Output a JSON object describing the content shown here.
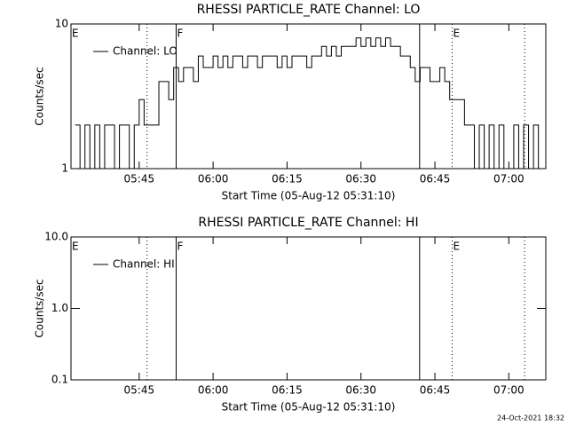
{
  "chart_data": [
    {
      "type": "line",
      "title": "RHESSI PARTICLE_RATE Channel: LO",
      "x_label": "Start Time (05-Aug-12 05:31:10)",
      "y_label": "Counts/sec",
      "log_y": true,
      "ylim": [
        1,
        10
      ],
      "yticks": [
        1,
        10
      ],
      "xlim": [
        331.17,
        427.5
      ],
      "xticks": [
        {
          "value": 345,
          "label": "05:45"
        },
        {
          "value": 360,
          "label": "06:00"
        },
        {
          "value": 375,
          "label": "06:15"
        },
        {
          "value": 390,
          "label": "06:30"
        },
        {
          "value": 405,
          "label": "06:45"
        },
        {
          "value": 420,
          "label": "07:00"
        }
      ],
      "x": [
        332,
        333,
        334,
        335,
        336,
        337,
        338,
        339,
        340,
        341,
        342,
        343,
        344,
        345,
        346,
        347,
        348,
        349,
        350,
        351,
        352,
        353,
        354,
        355,
        356,
        357,
        358,
        359,
        360,
        361,
        362,
        363,
        364,
        365,
        366,
        367,
        368,
        369,
        370,
        371,
        372,
        373,
        374,
        375,
        376,
        377,
        378,
        379,
        380,
        381,
        382,
        383,
        384,
        385,
        386,
        387,
        388,
        389,
        390,
        391,
        392,
        393,
        394,
        395,
        396,
        397,
        398,
        399,
        400,
        401,
        402,
        403,
        404,
        405,
        406,
        407,
        408,
        409,
        410,
        411,
        412,
        413,
        414,
        415,
        416,
        417,
        418,
        419,
        420,
        421,
        422,
        423,
        424,
        425,
        426
      ],
      "series": [
        {
          "name": "Channel: LO",
          "color": "#000000",
          "values": [
            2,
            1,
            2,
            1,
            2,
            1,
            2,
            2,
            1,
            2,
            2,
            1,
            2,
            3,
            2,
            2,
            2,
            4,
            4,
            3,
            5,
            4,
            5,
            5,
            4,
            6,
            5,
            5,
            6,
            5,
            6,
            5,
            6,
            6,
            5,
            6,
            6,
            5,
            6,
            6,
            6,
            5,
            6,
            5,
            6,
            6,
            6,
            5,
            6,
            6,
            7,
            6,
            7,
            6,
            7,
            7,
            7,
            8,
            7,
            8,
            7,
            8,
            7,
            8,
            7,
            7,
            6,
            6,
            5,
            4,
            5,
            5,
            4,
            4,
            5,
            4,
            3,
            3,
            3,
            2,
            2,
            1,
            2,
            1,
            2,
            1,
            2,
            1,
            1,
            2,
            1,
            2,
            1,
            2,
            1
          ]
        }
      ],
      "vlines": [
        {
          "x": 352.5,
          "style": "solid"
        },
        {
          "x": 401.9,
          "style": "solid"
        },
        {
          "x": 346.6,
          "style": "dotted"
        },
        {
          "x": 408.5,
          "style": "dotted"
        },
        {
          "x": 423.2,
          "style": "dotted"
        }
      ],
      "annotations": [
        {
          "text": "E",
          "x": 331.17
        },
        {
          "text": "F",
          "x": 352.5
        },
        {
          "text": "E",
          "x": 408.5
        }
      ]
    },
    {
      "type": "line",
      "title": "RHESSI PARTICLE_RATE Channel: HI",
      "x_label": "Start Time (05-Aug-12 05:31:10)",
      "y_label": "Counts/sec",
      "log_y": true,
      "ylim": [
        0.1,
        10
      ],
      "yticks": [
        {
          "value": 0.1,
          "label": "0.1"
        },
        {
          "value": 1,
          "label": "1.0"
        },
        {
          "value": 10,
          "label": "10.0"
        }
      ],
      "xlim": [
        331.17,
        427.5
      ],
      "xticks": [
        {
          "value": 345,
          "label": "05:45"
        },
        {
          "value": 360,
          "label": "06:00"
        },
        {
          "value": 375,
          "label": "06:15"
        },
        {
          "value": 390,
          "label": "06:30"
        },
        {
          "value": 405,
          "label": "06:45"
        },
        {
          "value": 420,
          "label": "07:00"
        }
      ],
      "x": [],
      "series": [
        {
          "name": "Channel: HI",
          "color": "#000000",
          "values": []
        }
      ],
      "vlines": [
        {
          "x": 352.5,
          "style": "solid"
        },
        {
          "x": 401.9,
          "style": "solid"
        },
        {
          "x": 346.6,
          "style": "dotted"
        },
        {
          "x": 408.5,
          "style": "dotted"
        },
        {
          "x": 423.2,
          "style": "dotted"
        }
      ],
      "annotations": [
        {
          "text": "E",
          "x": 331.17
        },
        {
          "text": "F",
          "x": 352.5
        },
        {
          "text": "E",
          "x": 408.5
        }
      ]
    }
  ],
  "footer": "24-Oct-2021 18:32"
}
